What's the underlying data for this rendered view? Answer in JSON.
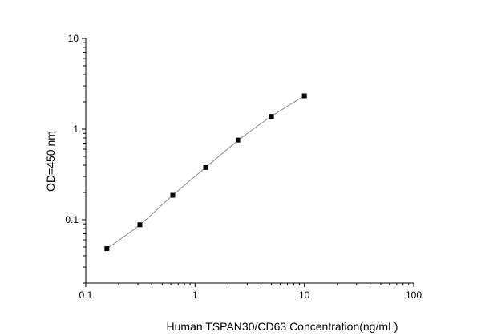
{
  "chart_data": {
    "type": "scatter",
    "title": "",
    "xlabel": "Human TSPAN30/CD63 Concentration(ng/mL)",
    "ylabel": "OD=450 nm",
    "x_scale": "log",
    "y_scale": "log",
    "xlim": [
      0.1,
      100
    ],
    "ylim": [
      0.02,
      10
    ],
    "x_ticks": [
      {
        "value": 0.1,
        "label": "0.1"
      },
      {
        "value": 1,
        "label": "1"
      },
      {
        "value": 10,
        "label": "10"
      },
      {
        "value": 100,
        "label": "100"
      }
    ],
    "y_ticks": [
      {
        "value": 0.1,
        "label": "0.1"
      },
      {
        "value": 1,
        "label": "1"
      },
      {
        "value": 10,
        "label": "10"
      }
    ],
    "grid": false,
    "legend": false,
    "series": [
      {
        "x": [
          0.156,
          0.3125,
          0.625,
          1.25,
          2.5,
          5,
          10
        ],
        "y": [
          0.048,
          0.088,
          0.186,
          0.377,
          0.757,
          1.382,
          2.33
        ],
        "marker": "square",
        "fit_line": true
      }
    ],
    "colors": {
      "marker": "#000000",
      "line": "#8c8c8c",
      "axis": "#000000"
    }
  }
}
